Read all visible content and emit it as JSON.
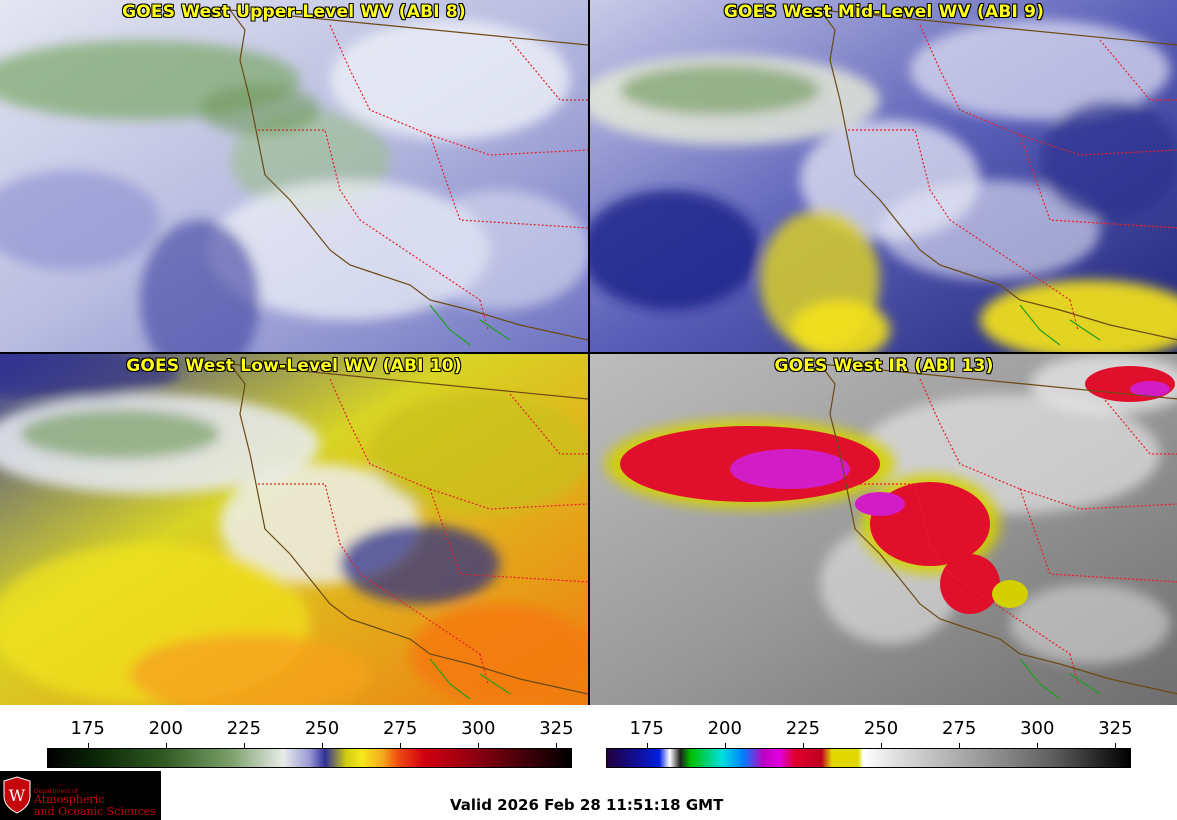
{
  "panels": [
    {
      "title": "GOES West Upper-Level WV (ABI 8)"
    },
    {
      "title": "GOES West Mid-Level WV (ABI 9)"
    },
    {
      "title": "GOES West Low-Level WV (ABI 10)"
    },
    {
      "title": "GOES West IR (ABI 13)"
    }
  ],
  "wv_colorbar": {
    "ticks": [
      "175",
      "200",
      "225",
      "250",
      "275",
      "300",
      "325"
    ],
    "range": [
      162,
      330
    ]
  },
  "ir_colorbar": {
    "ticks": [
      "175",
      "200",
      "225",
      "250",
      "275",
      "300",
      "325"
    ],
    "range": [
      162,
      330
    ]
  },
  "logo": {
    "small": "Department of",
    "line1": "Atmospheric",
    "line2": "and Oceanic Sciences",
    "shield_letter": "W"
  },
  "valid_text": "Valid 2026 Feb 28 11:51:18 GMT",
  "colors": {
    "title_text": "#ffff1a",
    "state_border": "#e8202a",
    "coast": "#6b4a14",
    "mexico_border": "#1fa01f",
    "logo_red": "#c5050c"
  }
}
